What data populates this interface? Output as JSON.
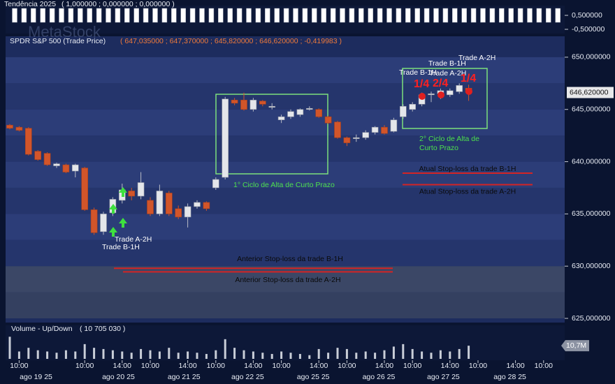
{
  "chart_data": [
    {
      "type": "candlestick",
      "title": "SPDR S&P 500 (Trade Price)",
      "title_values": "( 647,035000 ; 647,370000 ; 645,820000 ; 646,620000 ; -0,419983 )",
      "watermark": "MetaStock",
      "open": [
        643.5,
        643.3,
        643.2,
        641.0,
        640.8,
        639.6,
        639.7,
        639.1,
        639.4,
        635.4,
        633.3,
        635.1,
        636.3,
        637.2,
        636.7,
        636.3,
        635.0,
        637.0,
        635.5,
        634.7,
        635.7,
        636.1,
        637.5,
        638.5,
        645.9,
        645.9,
        645.0,
        645.8,
        645.2,
        644.0,
        644.3,
        644.5,
        645.0,
        645.0,
        644.3,
        643.8,
        642.3,
        642.2,
        642.3,
        642.8,
        643.3,
        642.9,
        644.3,
        645.0,
        645.5,
        646.4,
        646.5,
        646.4,
        646.7,
        647.035
      ],
      "high": [
        643.6,
        643.4,
        643.3,
        641.1,
        640.9,
        639.9,
        639.8,
        639.8,
        639.5,
        635.6,
        635.2,
        636.6,
        637.9,
        637.5,
        639.0,
        636.6,
        637.8,
        637.2,
        635.8,
        636.0,
        636.3,
        636.2,
        638.5,
        646.2,
        646.1,
        646.6,
        646.1,
        645.9,
        645.6,
        644.5,
        645.0,
        645.1,
        645.3,
        645.1,
        644.4,
        643.9,
        642.4,
        642.6,
        643.0,
        643.4,
        643.5,
        644.2,
        645.5,
        645.7,
        646.6,
        646.7,
        647.0,
        647.0,
        647.5,
        647.37
      ],
      "low": [
        643.1,
        642.9,
        640.6,
        640.1,
        639.6,
        639.4,
        638.9,
        638.5,
        635.3,
        633.0,
        633.0,
        634.8,
        636.0,
        636.3,
        636.4,
        634.8,
        634.8,
        634.8,
        634.5,
        633.7,
        635.5,
        635.3,
        637.3,
        638.3,
        645.4,
        644.9,
        644.8,
        645.3,
        645.0,
        643.7,
        644.1,
        644.3,
        644.9,
        644.2,
        643.6,
        642.2,
        641.5,
        641.9,
        642.1,
        642.6,
        642.6,
        642.8,
        644.1,
        644.8,
        645.3,
        645.7,
        646.0,
        646.2,
        646.5,
        645.82
      ],
      "close": [
        643.2,
        643.0,
        640.7,
        640.2,
        639.7,
        639.8,
        639.0,
        639.7,
        635.4,
        633.2,
        635.0,
        636.4,
        637.3,
        636.7,
        638.0,
        635.0,
        637.2,
        635.0,
        634.7,
        635.7,
        636.1,
        635.5,
        638.3,
        646.0,
        645.6,
        645.0,
        645.9,
        645.5,
        645.3,
        644.3,
        644.8,
        645.0,
        645.1,
        644.3,
        643.7,
        642.3,
        641.8,
        642.3,
        642.8,
        643.3,
        642.7,
        644.0,
        645.3,
        645.5,
        646.4,
        646.5,
        646.8,
        646.8,
        647.3,
        646.62
      ],
      "up_color": "#e4e6ea",
      "down_color": "#d2552a",
      "ylim": [
        624.6,
        652
      ],
      "yticks": [
        {
          "value": 625,
          "label": "625,000000"
        },
        {
          "value": 630,
          "label": "630,000000"
        },
        {
          "value": 635,
          "label": "635,000000"
        },
        {
          "value": 640,
          "label": "640,000000"
        },
        {
          "value": 645,
          "label": "645,000000"
        },
        {
          "value": 650,
          "label": "650,000000"
        }
      ],
      "last_price": {
        "value": 646.62,
        "label": "646,620000"
      },
      "xticks": [
        {
          "value": 1,
          "label": "10:00"
        },
        {
          "value": 8,
          "label": "10:00"
        },
        {
          "value": 12,
          "label": "14:00"
        },
        {
          "value": 15,
          "label": "10:00"
        },
        {
          "value": 19,
          "label": "14:00"
        },
        {
          "value": 22,
          "label": "10:00"
        },
        {
          "value": 26,
          "label": "14:00"
        },
        {
          "value": 29,
          "label": "10:00"
        },
        {
          "value": 33,
          "label": "14:00"
        },
        {
          "value": 36,
          "label": "10:00"
        },
        {
          "value": 40,
          "label": "14:00"
        },
        {
          "value": 43,
          "label": "10:00"
        },
        {
          "value": 47,
          "label": "14:00"
        },
        {
          "value": 50,
          "label": "10:00"
        },
        {
          "value": 54,
          "label": "14:00"
        },
        {
          "value": 57,
          "label": "10:00"
        }
      ],
      "date_labels": [
        {
          "value": 2.8,
          "label": "ago 19 25"
        },
        {
          "value": 11.6,
          "label": "ago 20 25"
        },
        {
          "value": 18.6,
          "label": "ago 21 25"
        },
        {
          "value": 25.4,
          "label": "ago 22 25"
        },
        {
          "value": 32.4,
          "label": "ago 25 25"
        },
        {
          "value": 39.4,
          "label": "ago 26 25"
        },
        {
          "value": 46.3,
          "label": "ago 27 25"
        },
        {
          "value": 53.4,
          "label": "ago 28 25"
        }
      ],
      "stop_lines": [
        {
          "value": 638.9,
          "label": "Atual Stop-loss da trade B-1H"
        },
        {
          "value": 637.8,
          "label": "Atual Stop-loss da trade A-2H"
        },
        {
          "value": 629.8,
          "label": "Anterior Stop-loss da trade B-1H"
        },
        {
          "value": 629.45,
          "label": "Anterior Stop-loss da trade A-2H"
        }
      ],
      "stop_color": "#d42424",
      "cycles": [
        "1° Ciclo de Alta de Curto Prazo",
        "2° Ciclo de Alta de",
        "Curto Prazo"
      ],
      "trade_labels": [
        "Trade A-2H",
        "Trade B-1H",
        "Trade B-1H",
        "Trade A-2H",
        "Trade B-1H",
        "Trade A-2H"
      ],
      "signals": [
        "1/4",
        "2/4",
        "1/4"
      ]
    },
    {
      "type": "bar",
      "title": "Tendência 2025",
      "title_values": "( 1,000000 ; 0,000000 ; 0,000000 )",
      "values": [
        1,
        1,
        1,
        1,
        1,
        1,
        1,
        1,
        1,
        1,
        1,
        1,
        1,
        1,
        1,
        1,
        1,
        1,
        1,
        1,
        1,
        1,
        1,
        1,
        1,
        1,
        1,
        1,
        1,
        1,
        1,
        1,
        1,
        1,
        1,
        1,
        1,
        1,
        1,
        1,
        1,
        1,
        1,
        1,
        1,
        1,
        1,
        1,
        1,
        1,
        1,
        1,
        1,
        1,
        1,
        1,
        1,
        1,
        1
      ],
      "color": "#ffffff",
      "ylim": [
        -0.8,
        1.2
      ],
      "yticks": [
        {
          "value": 0.5,
          "label": "0,500000"
        },
        {
          "value": -0.5,
          "label": "-0,500000"
        }
      ]
    },
    {
      "type": "bar",
      "title": "Volume - Up/Down",
      "title_values": "( 10 705 030 )",
      "values": [
        18,
        6,
        9,
        7,
        6,
        5,
        7,
        6,
        12,
        9,
        8,
        7,
        6,
        5,
        8,
        7,
        6,
        9,
        5,
        6,
        5,
        4,
        7,
        16,
        9,
        7,
        6,
        5,
        4,
        6,
        5,
        4,
        3,
        8,
        5,
        9,
        8,
        5,
        6,
        5,
        7,
        10,
        12,
        8,
        6,
        5,
        7,
        6,
        8,
        10.70503
      ],
      "color": "#c9ced8",
      "ylim": [
        0,
        25
      ],
      "last": {
        "value": 10.70503,
        "label": "10,7M"
      }
    }
  ]
}
